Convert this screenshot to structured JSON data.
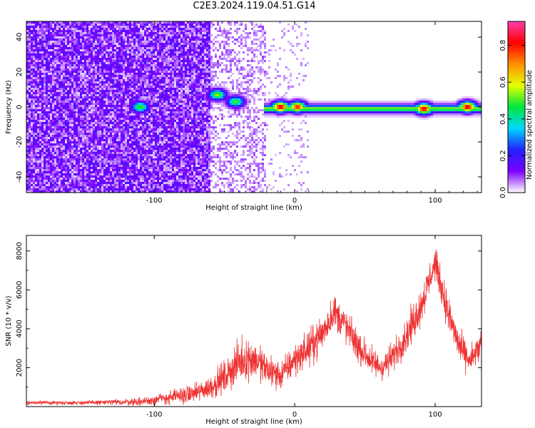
{
  "title": "C2E3.2024.119.04.51.G14",
  "colors": {
    "signal": "#ee3333",
    "axis": "#000000",
    "colormap": [
      "#ffffff",
      "#7b00ff",
      "#2222ff",
      "#00d8ff",
      "#00e63c",
      "#e6ff00",
      "#ff9000",
      "#ff0000",
      "#ff3db0"
    ]
  },
  "chart_data": [
    {
      "type": "heatmap",
      "xlabel": "Height of straight line (km)",
      "ylabel": "Frequency (Hz)",
      "xlim": [
        -191,
        133
      ],
      "ylim": [
        -49,
        49
      ],
      "x_ticks": [
        -100,
        0,
        100
      ],
      "y_ticks": [
        -40,
        -20,
        0,
        20,
        40
      ],
      "colorbar": {
        "label": "Normalized spectral amplitude",
        "range": [
          0,
          0.93
        ],
        "ticks": [
          "0.0",
          "0.2",
          "0.4",
          "0.6",
          "0.8"
        ],
        "tick_values": [
          0,
          0.2,
          0.4,
          0.6,
          0.8
        ]
      },
      "features": {
        "noise_region_x": [
          -191,
          -60
        ],
        "noise_region_upper_x_end": -60,
        "band_x": [
          -22,
          133
        ],
        "band_center_hz": -1,
        "bright_spots": [
          {
            "x": -110,
            "y": 0,
            "amp": 0.5
          },
          {
            "x": -55,
            "y": 7,
            "amp": 0.55
          },
          {
            "x": -42,
            "y": 3,
            "amp": 0.5
          },
          {
            "x": -10,
            "y": 0,
            "amp": 0.85
          },
          {
            "x": 2,
            "y": 0,
            "amp": 0.8
          },
          {
            "x": 92,
            "y": -1,
            "amp": 0.85
          },
          {
            "x": 123,
            "y": 0,
            "amp": 0.85
          }
        ]
      }
    },
    {
      "type": "line",
      "xlabel": "Height of straight line (km)",
      "ylabel": "SNR (10 * v/v)",
      "xlim": [
        -191,
        133
      ],
      "ylim": [
        0,
        8800
      ],
      "x_ticks": [
        -100,
        0,
        100
      ],
      "y_ticks": [
        2000,
        4000,
        6000,
        8000
      ],
      "envelope": {
        "x": [
          -191,
          -150,
          -110,
          -100,
          -90,
          -70,
          -60,
          -50,
          -40,
          -30,
          -20,
          -10,
          0,
          10,
          20,
          28,
          35,
          45,
          55,
          62,
          70,
          80,
          90,
          100,
          110,
          118,
          125,
          133
        ],
        "center": [
          200,
          200,
          250,
          350,
          450,
          700,
          1000,
          1500,
          2300,
          2500,
          1900,
          1600,
          2400,
          3000,
          3800,
          4900,
          4300,
          3100,
          2300,
          2000,
          2600,
          3700,
          5200,
          7400,
          4600,
          3000,
          2300,
          3200
        ],
        "spread": [
          150,
          150,
          300,
          400,
          500,
          700,
          900,
          1200,
          1500,
          1500,
          1300,
          1100,
          1200,
          1300,
          1400,
          1300,
          1300,
          1200,
          1100,
          1000,
          1100,
          1300,
          1400,
          1200,
          1400,
          1200,
          1000,
          1300
        ]
      }
    }
  ]
}
